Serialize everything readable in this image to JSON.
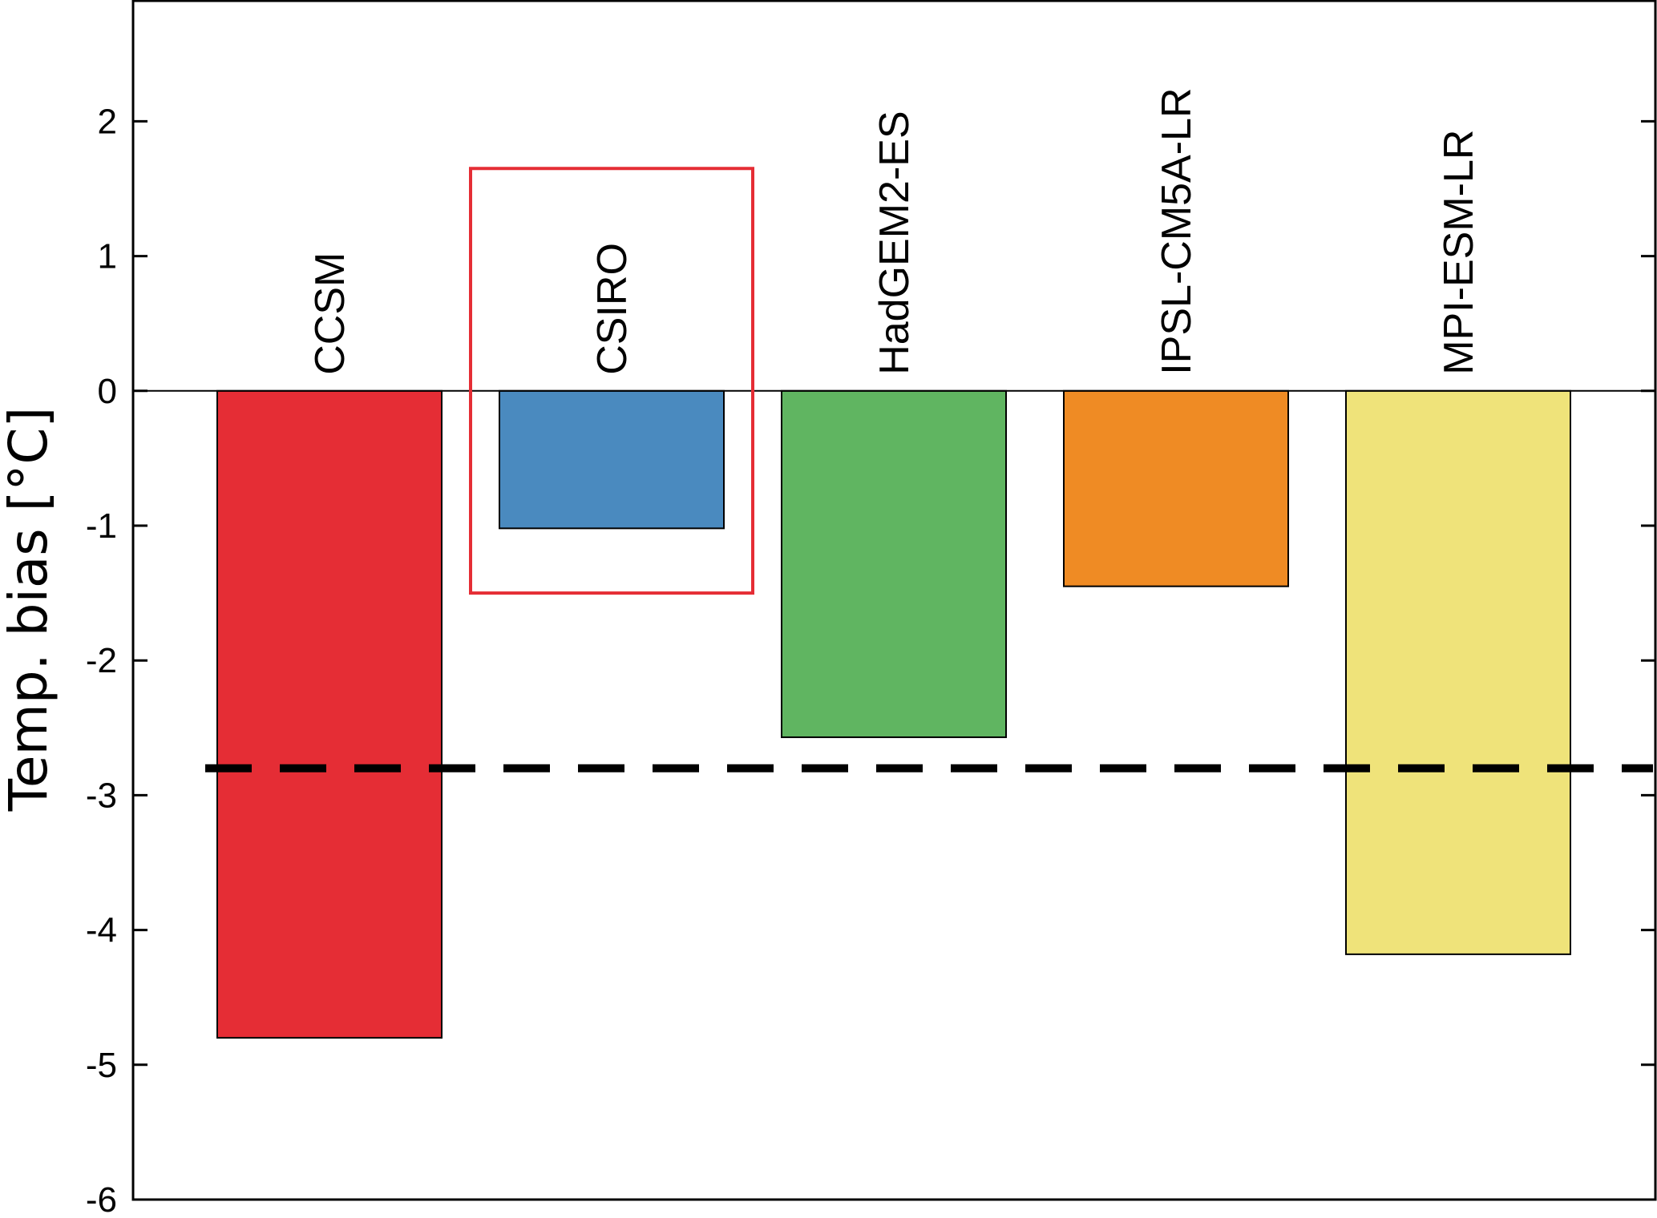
{
  "chart_data": {
    "type": "bar",
    "categories": [
      "CCSM",
      "CSIRO",
      "HadGEM2-ES",
      "IPSL-CM5A-LR",
      "MPI-ESM-LR"
    ],
    "values": [
      -4.8,
      -1.02,
      -2.57,
      -1.45,
      -4.18
    ],
    "colors": [
      "#e52d35",
      "#4a8abf",
      "#60b561",
      "#ef8b24",
      "#efe37a"
    ],
    "xlabel": "",
    "ylabel": "Temp. bias [°C]",
    "ylim": [
      -6,
      2.9
    ],
    "yticks": [
      -6,
      -5,
      -4,
      -3,
      -2,
      -1,
      0,
      1,
      2
    ],
    "ytick_labels": [
      "-6",
      "-5",
      "-4",
      "-3",
      "-2",
      "-1",
      "0",
      "1",
      "2"
    ],
    "reference_line": {
      "value": -2.8,
      "style": "dashed",
      "color": "#000000"
    },
    "highlight": {
      "category": "CSIRO",
      "color": "#e52d35",
      "y_range": [
        -1.5,
        1.65
      ]
    },
    "grid": false,
    "legend": "none"
  }
}
